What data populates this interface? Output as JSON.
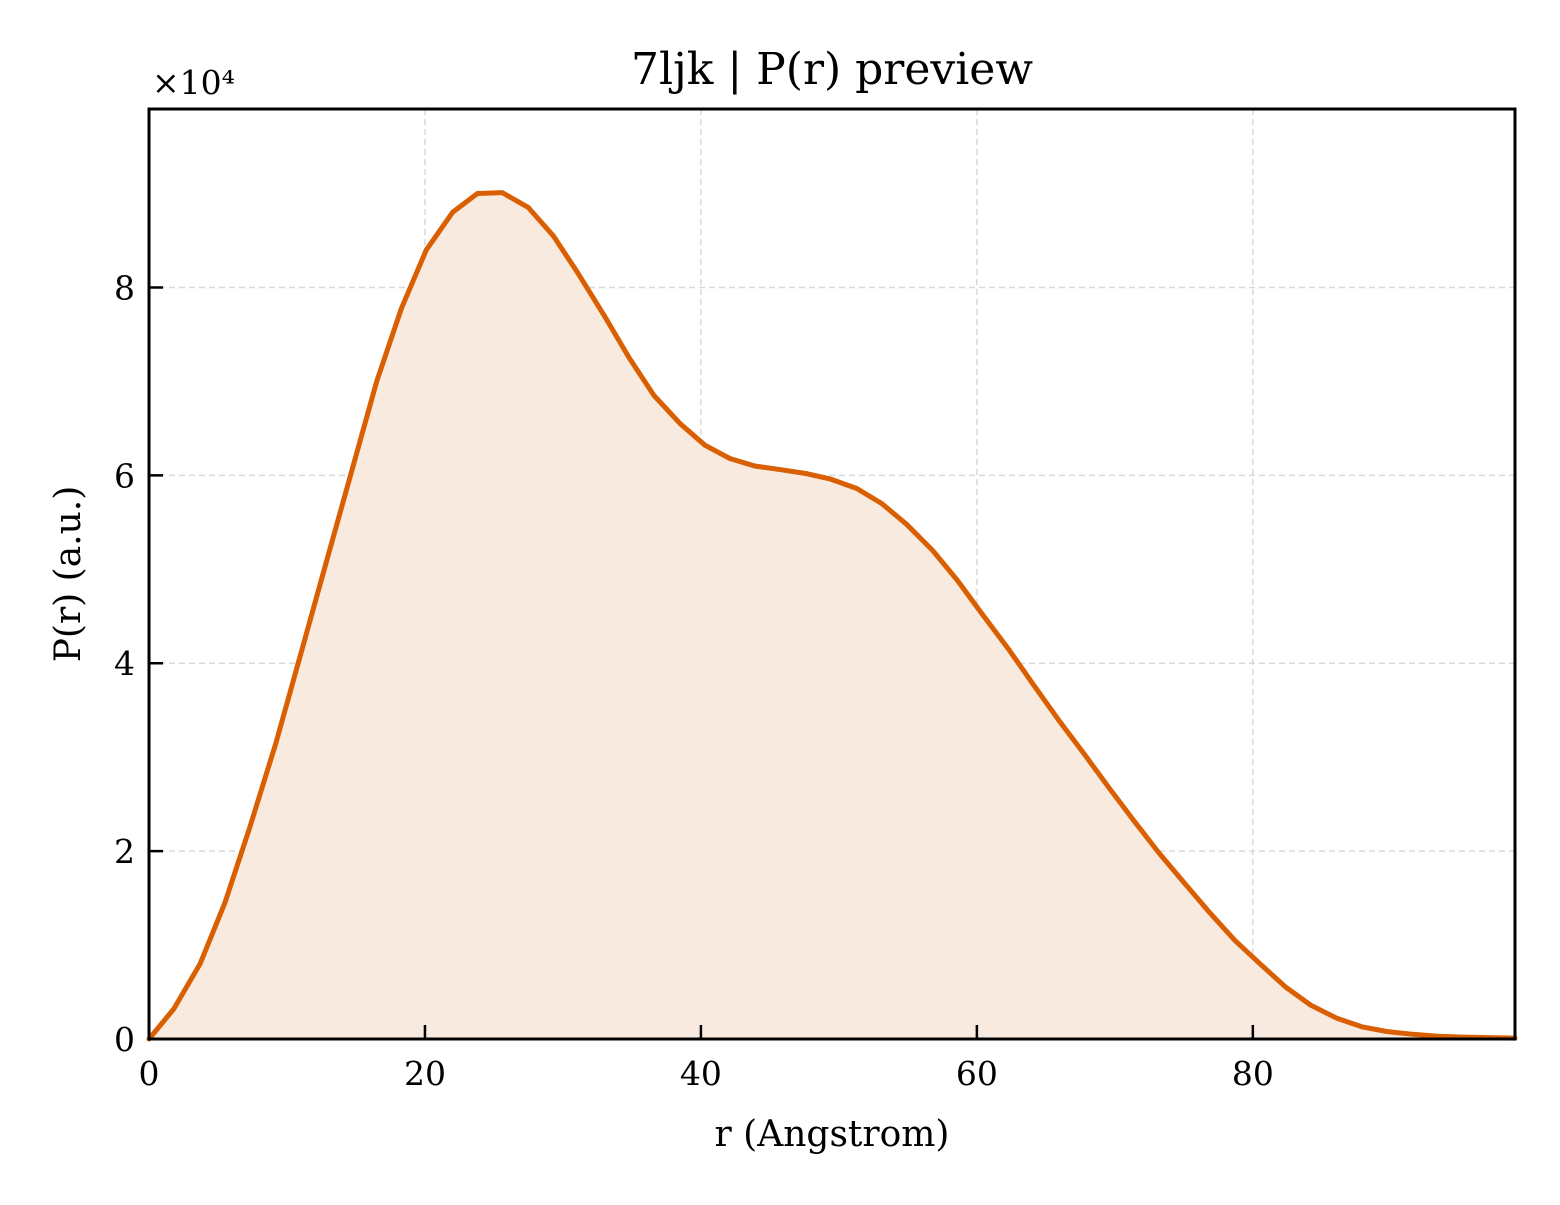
{
  "chart_data": {
    "type": "area",
    "title": "7ljk | P(r) preview",
    "xlabel": "r (Angstrom)",
    "ylabel": "P(r) (a.u.)",
    "y_multiplier_label": "×10⁴",
    "xlim": [
      0,
      99
    ],
    "ylim": [
      0,
      9.9
    ],
    "x_ticks": [
      0,
      20,
      40,
      60,
      80
    ],
    "x_tick_labels": [
      "0",
      "20",
      "40",
      "60",
      "80"
    ],
    "y_ticks": [
      0,
      2,
      4,
      6,
      8
    ],
    "y_tick_labels": [
      "0",
      "2",
      "4",
      "6",
      "8"
    ],
    "grid": true,
    "line_color": "#d95f02",
    "fill_color": "#f8eade",
    "series": [
      {
        "x": [
          0,
          1.8,
          3.7,
          5.5,
          7.3,
          9.2,
          11.0,
          12.8,
          14.7,
          16.5,
          18.3,
          20.1,
          22.0,
          23.8,
          25.6,
          27.5,
          29.3,
          31.1,
          33.0,
          34.8,
          36.6,
          38.5,
          40.3,
          42.1,
          43.9,
          45.8,
          47.6,
          49.4,
          51.3,
          53.1,
          54.9,
          56.8,
          58.6,
          60.4,
          62.3,
          64.1,
          65.9,
          67.8,
          69.6,
          71.4,
          73.2,
          75.1,
          76.9,
          78.7,
          80.6,
          82.4,
          84.2,
          86.1,
          87.9,
          89.7,
          91.6,
          93.4,
          95.2,
          97.1,
          99.0
        ],
        "values": [
          0.0,
          0.32,
          0.8,
          1.45,
          2.25,
          3.15,
          4.1,
          5.05,
          6.05,
          7.0,
          7.78,
          8.4,
          8.8,
          9.0,
          9.01,
          8.85,
          8.55,
          8.15,
          7.7,
          7.25,
          6.85,
          6.55,
          6.32,
          6.18,
          6.1,
          6.06,
          6.02,
          5.96,
          5.86,
          5.7,
          5.48,
          5.2,
          4.88,
          4.52,
          4.15,
          3.77,
          3.4,
          3.03,
          2.67,
          2.32,
          1.98,
          1.65,
          1.34,
          1.05,
          0.79,
          0.55,
          0.36,
          0.22,
          0.13,
          0.08,
          0.05,
          0.03,
          0.02,
          0.015,
          0.01
        ]
      }
    ]
  }
}
